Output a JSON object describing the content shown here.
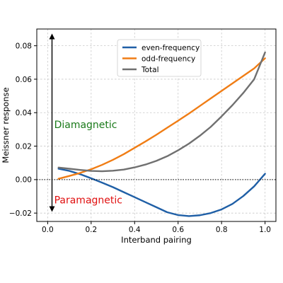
{
  "chart_data": {
    "type": "line",
    "xlabel": "Interband pairing",
    "ylabel": "Meissner response",
    "xlim": [
      -0.05,
      1.05
    ],
    "ylim": [
      -0.025,
      0.09
    ],
    "xticks": [
      0.0,
      0.2,
      0.4,
      0.6,
      0.8,
      1.0
    ],
    "xtick_labels": [
      "0.0",
      "0.2",
      "0.4",
      "0.6",
      "0.8",
      "1.0"
    ],
    "yticks": [
      -0.02,
      0.0,
      0.02,
      0.04,
      0.06,
      0.08
    ],
    "ytick_labels": [
      "−0.02",
      "0.00",
      "0.02",
      "0.04",
      "0.06",
      "0.08"
    ],
    "grid": true,
    "legend": "top-center",
    "zero_line": {
      "y": 0.0,
      "style": "dotted"
    },
    "annotations": [
      {
        "text": "Diamagnetic",
        "x": 0.03,
        "y": 0.033,
        "color": "#1a7a1a"
      },
      {
        "text": "Paramagnetic",
        "x": 0.03,
        "y": -0.012,
        "color": "#e01010"
      }
    ],
    "arrows": [
      {
        "x": 0.02,
        "from": 0.0,
        "to": 0.086
      },
      {
        "x": 0.02,
        "from": 0.0,
        "to": -0.018
      }
    ],
    "series": [
      {
        "name": "even-frequency",
        "color": "#1f5fa6",
        "x": [
          0.05,
          0.1,
          0.15,
          0.2,
          0.25,
          0.3,
          0.35,
          0.4,
          0.45,
          0.5,
          0.55,
          0.6,
          0.65,
          0.7,
          0.75,
          0.8,
          0.85,
          0.9,
          0.95,
          1.0
        ],
        "y": [
          0.0065,
          0.0052,
          0.0032,
          0.0008,
          -0.0018,
          -0.0045,
          -0.0075,
          -0.0105,
          -0.0135,
          -0.0165,
          -0.0195,
          -0.0212,
          -0.0218,
          -0.0213,
          -0.02,
          -0.0178,
          -0.0145,
          -0.0098,
          -0.004,
          0.0035
        ]
      },
      {
        "name": "odd-frequency",
        "color": "#f07d15",
        "x": [
          0.05,
          0.1,
          0.15,
          0.2,
          0.25,
          0.3,
          0.35,
          0.4,
          0.45,
          0.5,
          0.55,
          0.6,
          0.65,
          0.7,
          0.75,
          0.8,
          0.85,
          0.9,
          0.95,
          1.0
        ],
        "y": [
          0.0005,
          0.0022,
          0.004,
          0.0062,
          0.0088,
          0.0118,
          0.0152,
          0.019,
          0.0228,
          0.0268,
          0.031,
          0.0352,
          0.0395,
          0.044,
          0.0485,
          0.053,
          0.0575,
          0.062,
          0.0665,
          0.0725
        ]
      },
      {
        "name": "Total",
        "color": "#707070",
        "x": [
          0.05,
          0.1,
          0.15,
          0.2,
          0.25,
          0.3,
          0.35,
          0.4,
          0.45,
          0.5,
          0.55,
          0.6,
          0.65,
          0.7,
          0.75,
          0.8,
          0.85,
          0.9,
          0.95,
          1.0
        ],
        "y": [
          0.0072,
          0.0065,
          0.0058,
          0.0052,
          0.005,
          0.0053,
          0.006,
          0.0073,
          0.009,
          0.0112,
          0.014,
          0.0175,
          0.0215,
          0.0262,
          0.0315,
          0.0378,
          0.0445,
          0.0518,
          0.06,
          0.076
        ]
      }
    ]
  }
}
